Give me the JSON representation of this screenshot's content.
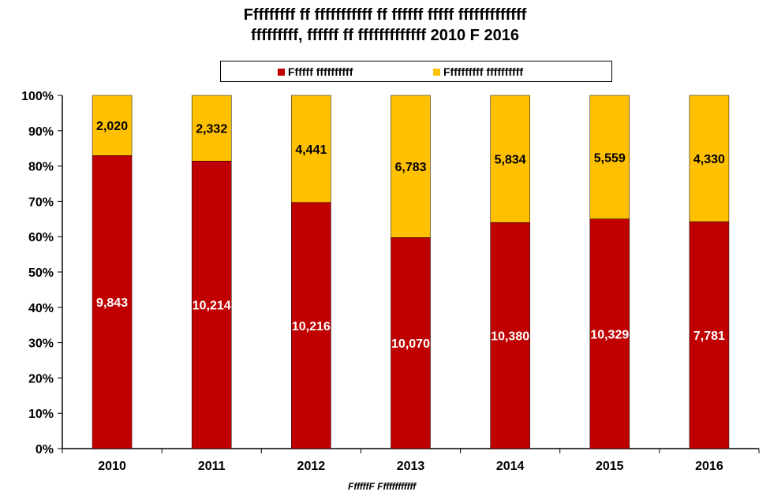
{
  "title_line1": "Fffffffff ff fffffffffff ff ffffff fffff fffffffffffff",
  "title_line2": "fffffffff, ffffff ff fffffffffffff 2010 F 2016",
  "source_note": "FfffffF Ffffffffffff",
  "colors": {
    "series1": "#C00000",
    "series2": "#FFC000"
  },
  "chart_data": {
    "type": "bar",
    "stacking": "percent",
    "categories": [
      "2010",
      "2011",
      "2012",
      "2013",
      "2014",
      "2015",
      "2016"
    ],
    "series": [
      {
        "name": "Ffffff ffffffffff",
        "values": [
          9843,
          10214,
          10216,
          10070,
          10380,
          10329,
          7781
        ],
        "labels": [
          "9,843",
          "10,214",
          "10,216",
          "10,070",
          "10,380",
          "10,329",
          "7,781"
        ]
      },
      {
        "name": "Ffffffffff ffffffffff",
        "values": [
          2020,
          2332,
          4441,
          6783,
          5834,
          5559,
          4330
        ],
        "labels": [
          "2,020",
          "2,332",
          "4,441",
          "6,783",
          "5,834",
          "5,559",
          "4,330"
        ]
      }
    ],
    "y_ticks": [
      "0%",
      "10%",
      "20%",
      "30%",
      "40%",
      "50%",
      "60%",
      "70%",
      "80%",
      "90%",
      "100%"
    ],
    "ylim": [
      0,
      100
    ],
    "grid": false,
    "legend": "top"
  }
}
